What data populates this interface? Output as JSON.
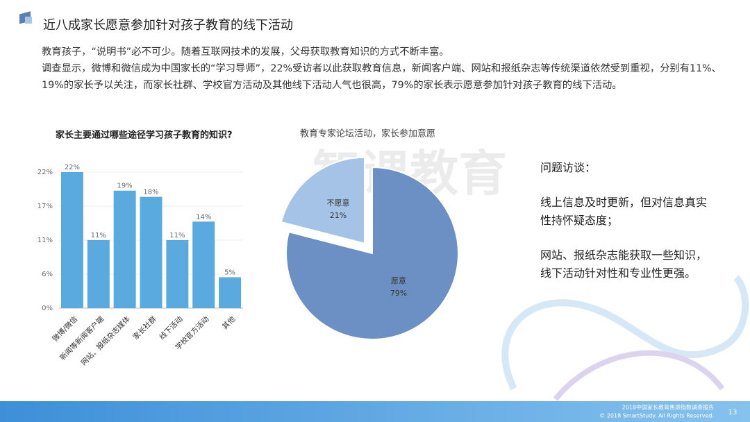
{
  "header": {
    "title": "近八成家长愿意参加针对孩子教育的线下活动"
  },
  "intro": [
    "教育孩子，“说明书”必不可少。随着互联网技术的发展，父母获取教育知识的方式不断丰富。",
    "调查显示，微博和微信成为中国家长的“学习导师”，22%受访者以此获取教育信息，新闻客户端、网站和报纸杂志等传统渠道依然受到重视，分别有11%、19%的家长予以关注，而家长社群、学校官方活动及其他线下活动人气也很高，79%的家长表示愿意参加针对孩子教育的线下活动。"
  ],
  "chart_data": [
    {
      "type": "bar",
      "title": "家长主要通过哪些途径学习孩子教育的知识?",
      "categories": [
        "微博/微信",
        "新闻等新闻客户端",
        "网站、报纸杂志媒体",
        "家长社群",
        "线下活动",
        "学校官方活动",
        "其他"
      ],
      "values": [
        22,
        11,
        19,
        18,
        11,
        14,
        5
      ],
      "value_labels": [
        "22%",
        "11%",
        "19%",
        "18%",
        "11%",
        "14%",
        "5%"
      ],
      "color": "#5aaae0",
      "ylim": [
        0,
        22
      ],
      "yticks": [
        {
          "value": 0,
          "label": "0%"
        },
        {
          "value": 5.5,
          "label": "6%"
        },
        {
          "value": 11,
          "label": "11%"
        },
        {
          "value": 16.5,
          "label": "17%"
        },
        {
          "value": 22,
          "label": "22%"
        }
      ],
      "grid": true
    },
    {
      "type": "pie",
      "title": "教育专家论坛活动，家长参加意愿",
      "categories": [
        "愿意",
        "不愿意"
      ],
      "values": [
        79,
        21
      ],
      "value_labels": [
        "79%",
        "21%"
      ],
      "colors": [
        "#6d90c4",
        "#a4c3e6"
      ]
    }
  ],
  "interview": [
    "问题访谈：",
    "线上信息及时更新，但对信息真实性持怀疑态度；",
    "网站、报纸杂志能获取一些知识，线下活动针对性和专业性更强。"
  ],
  "watermark": "智课教育",
  "footer": {
    "report": "2018中国家长教育焦虑指数调查报告",
    "copyright": "© 2018 SmartStudy. All Rights Reserved.",
    "page": "13"
  }
}
